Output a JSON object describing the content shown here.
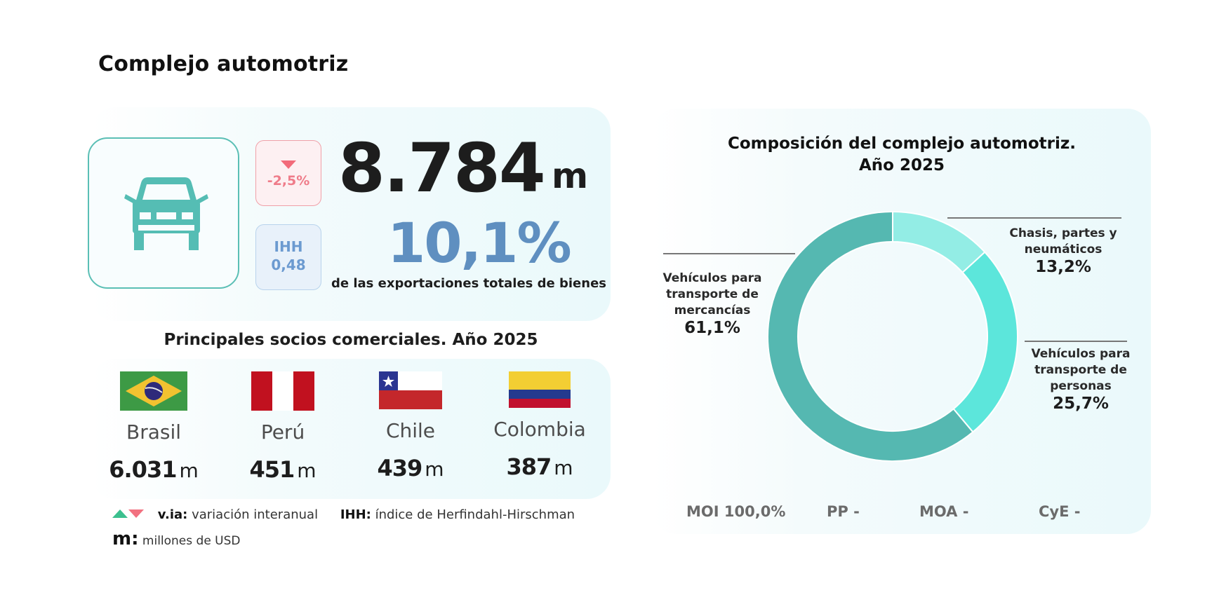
{
  "page": {
    "title": "Complejo automotriz"
  },
  "kpi": {
    "icon": "car-icon",
    "variation": {
      "icon": "triangle-down-icon",
      "value": "-2,5%",
      "color": "#ef7c8a"
    },
    "ihh": {
      "label": "IHH",
      "value": "0,48"
    },
    "exports_value": "8.784",
    "exports_unit": "m",
    "share_value": "10,1%",
    "share_caption": "de las exportaciones totales de bienes"
  },
  "partners": {
    "title": "Principales socios comerciales. Año 2025",
    "items": [
      {
        "flag": "brazil-flag-icon",
        "name": "Brasil",
        "value": "6.031",
        "unit": "m"
      },
      {
        "flag": "peru-flag-icon",
        "name": "Perú",
        "value": "451",
        "unit": "m"
      },
      {
        "flag": "chile-flag-icon",
        "name": "Chile",
        "value": "439",
        "unit": "m"
      },
      {
        "flag": "colombia-flag-icon",
        "name": "Colombia",
        "value": "387",
        "unit": "m"
      }
    ]
  },
  "legend": {
    "via_key": "v.ia:",
    "via_text": "variación interanual",
    "ihh_key": "IHH:",
    "ihh_text": "índice de Herfindahl-Hirschman",
    "m_key": "m:",
    "m_text": "millones de USD"
  },
  "chart_data": {
    "type": "pie",
    "title": "Composición del complejo automotriz. Año 2025",
    "title_line1": "Composición del complejo automotriz.",
    "title_line2": "Año 2025",
    "donut": true,
    "categories": [
      "Chasis, partes y neumáticos",
      "Vehículos para transporte de personas",
      "Vehículos para transporte de mercancías"
    ],
    "values": [
      13.2,
      25.7,
      61.1
    ],
    "labels": [
      "13,2%",
      "25,7%",
      "61,1%"
    ],
    "colors": [
      "#93ede5",
      "#5ce6db",
      "#55b8b1"
    ],
    "label_lines": {
      "chasis": [
        "Chasis, partes y",
        "neumáticos"
      ],
      "personas": [
        "Vehículos para",
        "transporte de",
        "personas"
      ],
      "mercancias": [
        "Vehículos para",
        "transporte de",
        "mercancías"
      ]
    },
    "rubros": [
      {
        "label": "MOI",
        "value": "100,0%"
      },
      {
        "label": "PP",
        "value": "-"
      },
      {
        "label": "MOA",
        "value": "-"
      },
      {
        "label": "CyE",
        "value": "-"
      }
    ]
  }
}
